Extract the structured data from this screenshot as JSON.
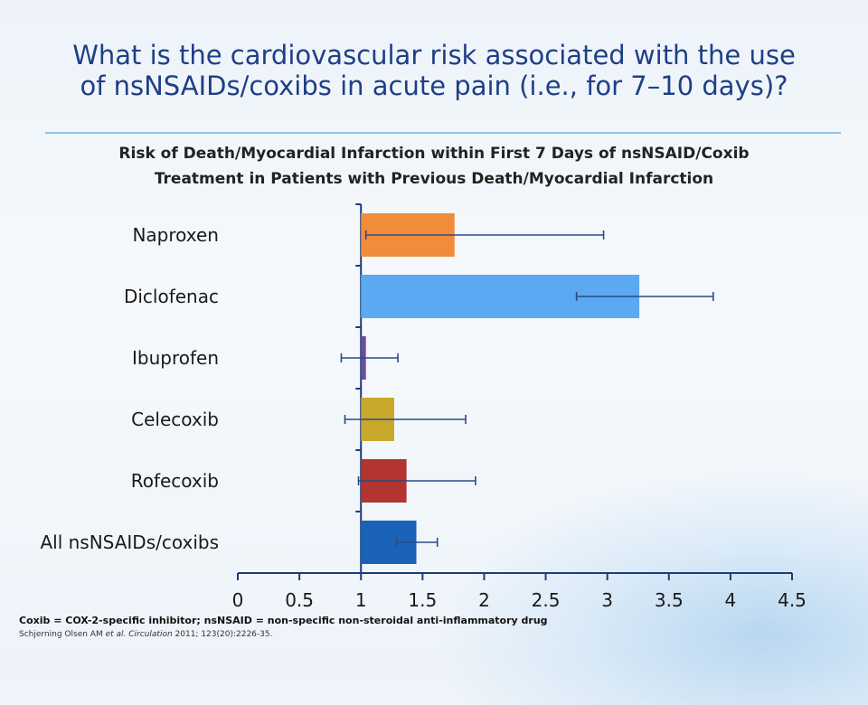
{
  "slide": {
    "title_line1": "What is the cardiovascular risk associated with the use",
    "title_line2": "of nsNSAIDs/coxibs  in acute pain (i.e., for 7–10 days)?",
    "footnote": "Coxib = COX-2-specific inhibitor; nsNSAID = non-specific non-steroidal anti-inflammatory drug",
    "citation_prefix": "Schjerning Olsen AM ",
    "citation_italic": "et al. Circulation",
    "citation_suffix": " 2011; 123(20):2226-35."
  },
  "chart_data": {
    "type": "bar",
    "orientation": "horizontal",
    "title_line1": "Risk of Death/Myocardial Infarction within First 7 Days of nsNSAID/Coxib",
    "title_line2": "Treatment in Patients with Previous Death/Myocardial Infarction",
    "categories": [
      "Naproxen",
      "Diclofenac",
      "Ibuprofen",
      "Celecoxib",
      "Rofecoxib",
      "All nsNSAIDs/coxibs"
    ],
    "values": [
      1.76,
      3.26,
      1.04,
      1.27,
      1.37,
      1.45
    ],
    "ci_low": [
      1.04,
      2.75,
      0.84,
      0.87,
      0.98,
      1.29
    ],
    "ci_high": [
      2.97,
      3.86,
      1.3,
      1.85,
      1.93,
      1.62
    ],
    "bar_colors": [
      "#f28c3a",
      "#5aa9f2",
      "#6a4c9c",
      "#c9a92c",
      "#b23530",
      "#1a62b8"
    ],
    "error_color": "#2a4a86",
    "baseline": 1,
    "xlim": [
      0,
      4.5
    ],
    "xticks": [
      "0",
      "0.5",
      "1",
      "1.5",
      "2",
      "2.5",
      "3",
      "3.5",
      "4",
      "4.5"
    ],
    "xlabel": "",
    "ylabel": "",
    "grid": false
  }
}
